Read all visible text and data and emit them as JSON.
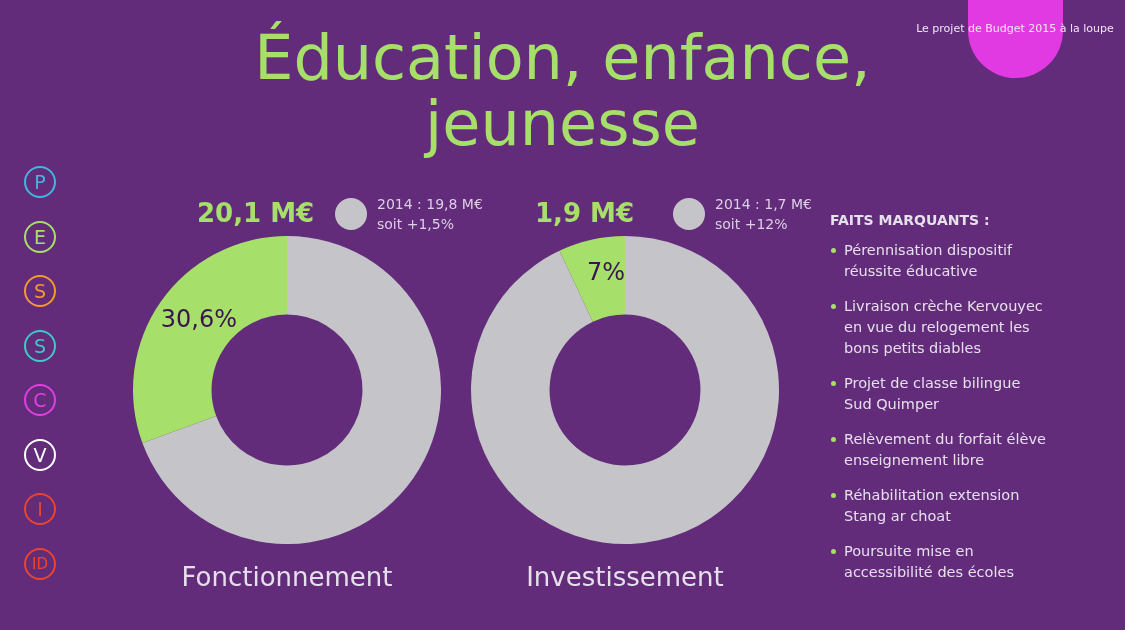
{
  "chart_data": [
    {
      "type": "other",
      "title": "Éducation, enfance, jeunesse",
      "annotations": [
        "Le projet de Budget 2015 à la loupe",
        "P",
        "E",
        "S",
        "S",
        "C",
        "V",
        "I",
        "ID"
      ]
    },
    {
      "type": "donut",
      "title": "20,1 M€",
      "xlabel": "Fonctionnement",
      "annotations": [
        "2014 : 19,8 M€",
        "soit +1,5%"
      ],
      "categories": [
        null,
        null
      ],
      "values": [
        69.4,
        30.6
      ],
      "colors": [
        "#c5c5c9",
        "#a6e06a"
      ],
      "value_labels": [
        null,
        "30,6%"
      ]
    },
    {
      "type": "donut",
      "title": "1,9 M€",
      "xlabel": "Investissement",
      "annotations": [
        "2014 : 1,7 M€",
        "soit +12%"
      ],
      "categories": [
        null,
        null
      ],
      "values": [
        93,
        7
      ],
      "colors": [
        "#c5c5c9",
        "#a6e06a"
      ],
      "value_labels": [
        null,
        "7%"
      ]
    },
    {
      "type": "other",
      "title": "FAITS MARQUANTS :",
      "annotations": [
        "Pérennisation dispositif réussite éducative",
        "Livraison crèche Kervouyec en vue du relogement les bons petits diables",
        "Projet de classe bilingue Sud Quimper",
        "Relèvement du forfait élève enseignement libre",
        "Réhabilitation extension Stang ar choat",
        "Poursuite mise en accessibilité des écoles"
      ]
    }
  ]
}
